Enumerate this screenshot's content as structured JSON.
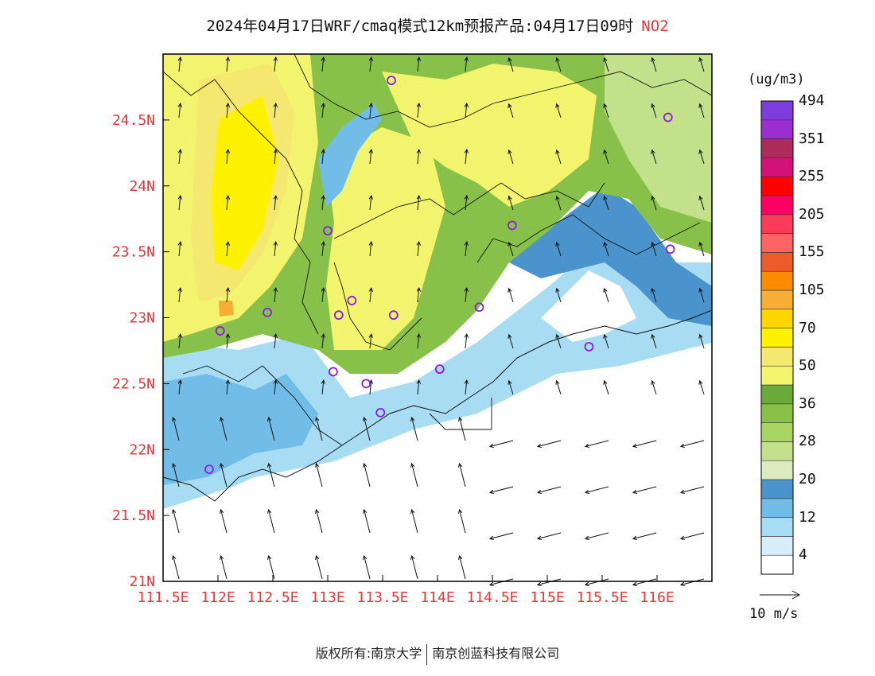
{
  "title": {
    "main": "2024年04月17日WRF/cmaq模式12km预报产品:04月17日09时",
    "pollutant": "NO2"
  },
  "map": {
    "lon_range": [
      111.5,
      116.5
    ],
    "lat_range": [
      21.0,
      25.0
    ],
    "lon_ticks": [
      "111.5E",
      "112E",
      "112.5E",
      "113E",
      "113.5E",
      "114E",
      "114.5E",
      "115E",
      "115.5E",
      "116E"
    ],
    "lat_ticks": [
      "21N",
      "21.5N",
      "22N",
      "22.5N",
      "23N",
      "23.5N",
      "24N",
      "24.5N"
    ],
    "axis_color": "#e8373a",
    "stations": [
      {
        "lon": 113.58,
        "lat": 24.8
      },
      {
        "lon": 116.1,
        "lat": 24.52
      },
      {
        "lon": 113.0,
        "lat": 23.66
      },
      {
        "lon": 114.68,
        "lat": 23.7
      },
      {
        "lon": 116.12,
        "lat": 23.52
      },
      {
        "lon": 112.45,
        "lat": 23.04
      },
      {
        "lon": 113.1,
        "lat": 23.02
      },
      {
        "lon": 113.22,
        "lat": 23.13
      },
      {
        "lon": 113.6,
        "lat": 23.02
      },
      {
        "lon": 114.38,
        "lat": 23.08
      },
      {
        "lon": 112.02,
        "lat": 22.9
      },
      {
        "lon": 115.38,
        "lat": 22.78
      },
      {
        "lon": 113.05,
        "lat": 22.59
      },
      {
        "lon": 113.35,
        "lat": 22.5
      },
      {
        "lon": 114.02,
        "lat": 22.61
      },
      {
        "lon": 113.48,
        "lat": 22.28
      },
      {
        "lon": 111.92,
        "lat": 21.85
      }
    ]
  },
  "colorbar": {
    "unit": "(ug/m3)",
    "colors": [
      "#ffffff",
      "#d6eefa",
      "#a8dcf3",
      "#71bde8",
      "#4a93cc",
      "#dcebc0",
      "#c3e08a",
      "#a8d463",
      "#88c14a",
      "#6aaa3a",
      "#f2f46e",
      "#f4e870",
      "#fff200",
      "#ffd700",
      "#f8ad37",
      "#ff8c00",
      "#ee5b2a",
      "#ff6464",
      "#fa3c5a",
      "#ff0064",
      "#ff0000",
      "#d4107a",
      "#ad2c5c",
      "#9a2ed0",
      "#7d3cdc"
    ],
    "labels": [
      "4",
      "12",
      "20",
      "28",
      "36",
      "50",
      "70",
      "105",
      "155",
      "205",
      "255",
      "351",
      "494"
    ]
  },
  "wind_reference": {
    "label": "10 m/s"
  },
  "footer": {
    "left": "版权所有:南京大学",
    "right": "南京创蓝科技有限公司"
  }
}
